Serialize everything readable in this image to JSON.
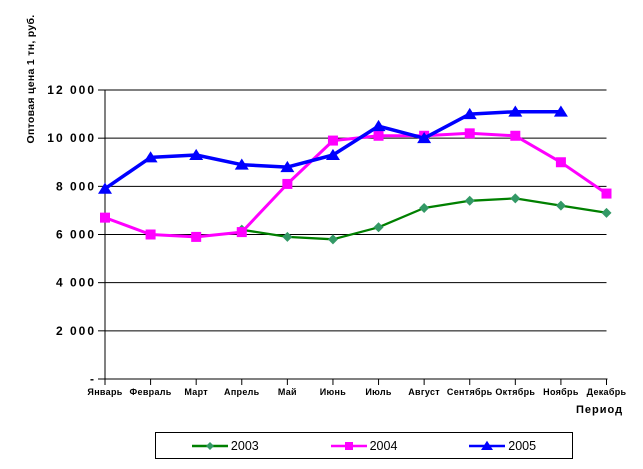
{
  "y_axis_title": "Оптовая цена 1 тн, руб.",
  "x_axis_title": "Период",
  "chart_data": {
    "type": "line",
    "title": "",
    "categories": [
      "Январь",
      "Февраль",
      "Март",
      "Апрель",
      "Май",
      "Июнь",
      "Июль",
      "Август",
      "Сентябрь",
      "Октябрь",
      "Ноябрь",
      "Декабрь"
    ],
    "series": [
      {
        "name": "2003",
        "marker": "diamond",
        "line_color": "#008000",
        "marker_color": "#339966",
        "line_width": 2.3,
        "values": [
          null,
          null,
          null,
          6200,
          5900,
          5800,
          6300,
          7100,
          7400,
          7500,
          7200,
          6900
        ]
      },
      {
        "name": "2004",
        "marker": "square",
        "line_color": "#FF00FF",
        "marker_color": "#FF00FF",
        "line_width": 3,
        "values": [
          6700,
          6000,
          5900,
          6100,
          8100,
          9900,
          10100,
          10100,
          10200,
          10100,
          9000,
          7700
        ]
      },
      {
        "name": "2005",
        "marker": "triangle",
        "line_color": "#0000FF",
        "marker_color": "#0000FF",
        "line_width": 3.5,
        "values": [
          7900,
          9200,
          9300,
          8900,
          8800,
          9300,
          10500,
          10000,
          11000,
          11100,
          11100,
          null
        ]
      }
    ],
    "ylabel": "Оптовая цена 1 тн, руб.",
    "xlabel": "Период",
    "ylim": [
      0,
      12000
    ],
    "ytick_step": 2000,
    "ytick_labels": [
      "-",
      "2 000",
      "4 000",
      "6 000",
      "8 000",
      "10 000",
      "12 000"
    ],
    "grid": true,
    "legend_position": "bottom",
    "axis_color": "#000000",
    "background_color": "#FFFFFF"
  }
}
